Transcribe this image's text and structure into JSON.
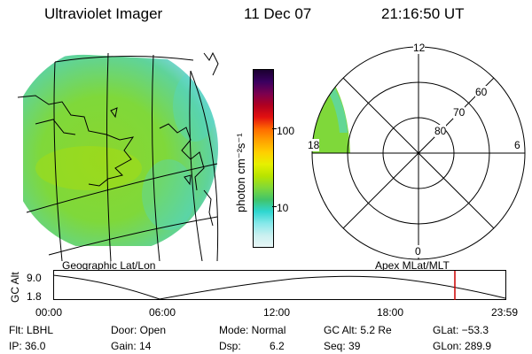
{
  "header": {
    "title": "Ultraviolet Imager",
    "date": "11 Dec 07",
    "time": "21:16:50 UT"
  },
  "colors": {
    "background": "#ffffff",
    "aurora_green": "#7dd93a",
    "aurora_cyan": "#4fd7d0",
    "marker_red": "#cc0000"
  },
  "colorbar": {
    "unit_label": "photon cm⁻²s⁻¹",
    "ticks": [
      "100",
      "10"
    ],
    "colors": [
      "#1a0030",
      "#3a0060",
      "#7a0050",
      "#b00020",
      "#e21010",
      "#ff6a00",
      "#ffa200",
      "#ffd000",
      "#e6f000",
      "#b7e400",
      "#7fd83a",
      "#41c46a",
      "#2fd6d0",
      "#86e8ea",
      "#c9f0f0",
      "#e8f6f6"
    ]
  },
  "map_left": {
    "label": "Geographic Lat/Lon",
    "icons": [
      "coastline-icon"
    ]
  },
  "polar": {
    "label": "Apex MLat/MLT",
    "mlt_labels": {
      "top": "12",
      "left": "18",
      "right": "6",
      "bottom": "0"
    },
    "lat_labels": [
      "60",
      "70",
      "80"
    ]
  },
  "timeline": {
    "ylabel": "GC Alt",
    "y_ticks": [
      "9.0",
      "1.8"
    ],
    "x_ticks": [
      "00:00",
      "06:00",
      "12:00",
      "18:00",
      "23:59"
    ]
  },
  "info": {
    "row1": {
      "flt": "Flt: LBHL",
      "door": "Door: Open",
      "mode": "Mode: Normal",
      "gcalt": "GC Alt: 5.2 Re",
      "glat": "GLat: −53.3"
    },
    "row2": {
      "ip": "IP: 36.0",
      "gain": "Gain: 14",
      "dsp_label": "Dsp:",
      "dsp_value": "6.2",
      "seq": "Seq: 39",
      "glon": "GLon: 289.9"
    }
  }
}
